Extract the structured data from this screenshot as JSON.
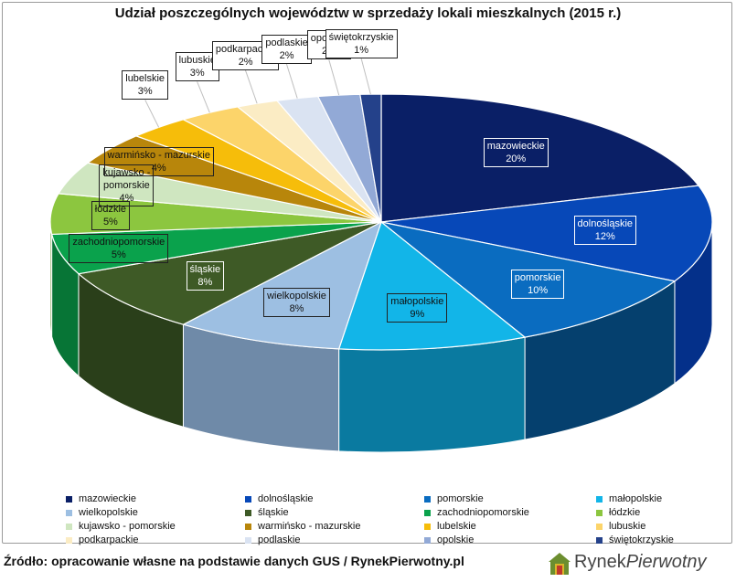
{
  "chart_data": {
    "type": "pie",
    "title": "Udział poszczególnych województw w sprzedaży lokali mieszkalnych (2015 r.)",
    "slices": [
      {
        "name": "mazowieckie",
        "value": 20,
        "label": "20%",
        "color": "#0a1f66",
        "side": "#061446",
        "light": true
      },
      {
        "name": "dolnośląskie",
        "value": 12,
        "label": "12%",
        "color": "#0748b8",
        "side": "#04308a",
        "light": true
      },
      {
        "name": "pomorskie",
        "value": 10,
        "label": "10%",
        "color": "#0a6cc0",
        "side": "#05406e",
        "light": true
      },
      {
        "name": "małopolskie",
        "value": 9,
        "label": "9%",
        "color": "#12b5e8",
        "side": "#0a7aa0",
        "light": false
      },
      {
        "name": "wielkopolskie",
        "value": 8,
        "label": "8%",
        "color": "#9dbfe2",
        "side": "#6f8aa8",
        "light": false
      },
      {
        "name": "śląskie",
        "value": 8,
        "label": "8%",
        "color": "#3e5a26",
        "side": "#2a3f1a",
        "light": true
      },
      {
        "name": "zachodniopomorskie",
        "value": 5,
        "label": "5%",
        "color": "#0aa24c",
        "side": "#077536",
        "light": false
      },
      {
        "name": "łódzkie",
        "value": 5,
        "label": "5%",
        "color": "#8cc63f",
        "side": "#63902c",
        "light": false
      },
      {
        "name": "kujawsko - pomorskie",
        "value": 4,
        "label": "4%",
        "color": "#cfe6c0",
        "side": "#9cb090",
        "light": false
      },
      {
        "name": "warmińsko - mazurskie",
        "value": 4,
        "label": "4%",
        "color": "#b8860b",
        "side": "#8a6408",
        "light": false
      },
      {
        "name": "lubelskie",
        "value": 3,
        "label": "3%",
        "color": "#f6bd0a",
        "side": "#c49508",
        "light": false
      },
      {
        "name": "lubuskie",
        "value": 3,
        "label": "3%",
        "color": "#fcd46a",
        "side": "#cca84f",
        "light": false
      },
      {
        "name": "podkarpackie",
        "value": 2,
        "label": "2%",
        "color": "#fbecc4",
        "side": "#cdbf9a",
        "light": false
      },
      {
        "name": "podlaskie",
        "value": 2,
        "label": "2%",
        "color": "#dae3f2",
        "side": "#aab3c2",
        "light": false
      },
      {
        "name": "opolskie",
        "value": 2,
        "label": "2%",
        "color": "#92a9d6",
        "side": "#6a7fa6",
        "light": false
      },
      {
        "name": "świętokrzyskie",
        "value": 1,
        "label": "1%",
        "color": "#24418a",
        "side": "#172c60",
        "light": false
      }
    ],
    "pie_label_names": {
      "kujawsko - pomorskie": "kujawsko -\npomorskie"
    },
    "legend_position": "bottom"
  },
  "source": "Źródło: opracowanie własne na podstawie danych GUS / RynekPierwotny.pl",
  "logo": {
    "text_part1": "Rynek",
    "text_part2": "Pierwotny"
  }
}
